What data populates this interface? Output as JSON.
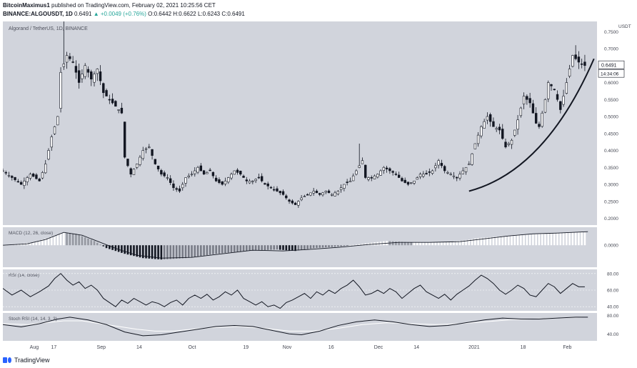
{
  "header": {
    "author": "BitcoinMaximus1",
    "published_text": " published on TradingView.com, February 02, 2021 10:25:56 CET",
    "symbol": "BINANCE:ALGOUSDT, 1D",
    "price": " 0.6491",
    "change": " ▲ +0.0049 (+0.76%)",
    "ohlc": " O:0.6442 H:0.6622 L:0.6243 C:0.6491"
  },
  "footer": {
    "brand": "TradingView"
  },
  "chart_data": {
    "type": "candlestick",
    "title": "Algorand / TetherUS, 1D, BINANCE",
    "currency": "USDT",
    "last_price": "0.6491",
    "countdown": "14:34:06",
    "ylim": [
      0.18,
      0.78
    ],
    "y_ticks": [
      "0.7500",
      "0.7000",
      "0.6500",
      "0.6000",
      "0.5500",
      "0.5000",
      "0.4500",
      "0.4000",
      "0.3500",
      "0.3000",
      "0.2500",
      "0.2000"
    ],
    "x_ticks": [
      {
        "label": "Aug",
        "day": 10
      },
      {
        "label": "17",
        "day": 17
      },
      {
        "label": "Sep",
        "day": 32
      },
      {
        "label": "14",
        "day": 45
      },
      {
        "label": "Oct",
        "day": 62
      },
      {
        "label": "19",
        "day": 80
      },
      {
        "label": "Nov",
        "day": 93
      },
      {
        "label": "16",
        "day": 108
      },
      {
        "label": "Dec",
        "day": 123
      },
      {
        "label": "14",
        "day": 136
      },
      {
        "label": "2021",
        "day": 154
      },
      {
        "label": "18",
        "day": 171
      },
      {
        "label": "Feb",
        "day": 185
      }
    ],
    "x_range": [
      0,
      195
    ],
    "price_path": [
      [
        0,
        0.34
      ],
      [
        3,
        0.32
      ],
      [
        6,
        0.3
      ],
      [
        9,
        0.33
      ],
      [
        12,
        0.31
      ],
      [
        14,
        0.36
      ],
      [
        16,
        0.44
      ],
      [
        18,
        0.5
      ],
      [
        19,
        0.63
      ],
      [
        21,
        0.68
      ],
      [
        23,
        0.66
      ],
      [
        25,
        0.6
      ],
      [
        27,
        0.65
      ],
      [
        29,
        0.61
      ],
      [
        31,
        0.64
      ],
      [
        33,
        0.57
      ],
      [
        35,
        0.55
      ],
      [
        37,
        0.53
      ],
      [
        39,
        0.51
      ],
      [
        40,
        0.38
      ],
      [
        42,
        0.33
      ],
      [
        44,
        0.36
      ],
      [
        46,
        0.4
      ],
      [
        48,
        0.41
      ],
      [
        50,
        0.36
      ],
      [
        52,
        0.33
      ],
      [
        54,
        0.32
      ],
      [
        56,
        0.29
      ],
      [
        58,
        0.28
      ],
      [
        60,
        0.32
      ],
      [
        62,
        0.33
      ],
      [
        64,
        0.35
      ],
      [
        66,
        0.33
      ],
      [
        68,
        0.34
      ],
      [
        70,
        0.31
      ],
      [
        72,
        0.3
      ],
      [
        74,
        0.32
      ],
      [
        76,
        0.34
      ],
      [
        78,
        0.33
      ],
      [
        80,
        0.31
      ],
      [
        82,
        0.31
      ],
      [
        84,
        0.32
      ],
      [
        86,
        0.3
      ],
      [
        88,
        0.29
      ],
      [
        90,
        0.28
      ],
      [
        92,
        0.27
      ],
      [
        94,
        0.25
      ],
      [
        96,
        0.24
      ],
      [
        98,
        0.26
      ],
      [
        100,
        0.27
      ],
      [
        102,
        0.28
      ],
      [
        104,
        0.27
      ],
      [
        106,
        0.28
      ],
      [
        108,
        0.27
      ],
      [
        110,
        0.28
      ],
      [
        112,
        0.3
      ],
      [
        114,
        0.31
      ],
      [
        116,
        0.34
      ],
      [
        118,
        0.37
      ],
      [
        119,
        0.32
      ],
      [
        121,
        0.32
      ],
      [
        123,
        0.33
      ],
      [
        125,
        0.35
      ],
      [
        127,
        0.34
      ],
      [
        129,
        0.33
      ],
      [
        131,
        0.31
      ],
      [
        133,
        0.3
      ],
      [
        135,
        0.31
      ],
      [
        137,
        0.33
      ],
      [
        139,
        0.33
      ],
      [
        141,
        0.34
      ],
      [
        143,
        0.37
      ],
      [
        145,
        0.34
      ],
      [
        147,
        0.33
      ],
      [
        149,
        0.32
      ],
      [
        151,
        0.34
      ],
      [
        153,
        0.36
      ],
      [
        155,
        0.42
      ],
      [
        157,
        0.47
      ],
      [
        159,
        0.5
      ],
      [
        161,
        0.47
      ],
      [
        163,
        0.46
      ],
      [
        165,
        0.41
      ],
      [
        167,
        0.43
      ],
      [
        169,
        0.49
      ],
      [
        171,
        0.56
      ],
      [
        173,
        0.54
      ],
      [
        175,
        0.48
      ],
      [
        176,
        0.47
      ],
      [
        178,
        0.55
      ],
      [
        179,
        0.6
      ],
      [
        181,
        0.58
      ],
      [
        183,
        0.52
      ],
      [
        185,
        0.6
      ],
      [
        187,
        0.68
      ],
      [
        189,
        0.66
      ],
      [
        191,
        0.65
      ]
    ],
    "trendline": {
      "from": [
        153,
        0.28
      ],
      "ctrl": [
        178,
        0.34
      ],
      "to": [
        194,
        0.67
      ]
    },
    "macd": {
      "label": "MACD (12, 26, close)",
      "zero_label": "0.0000",
      "histogram": [
        [
          0,
          0.0
        ],
        [
          10,
          0.2
        ],
        [
          16,
          0.6
        ],
        [
          20,
          0.9
        ],
        [
          24,
          0.8
        ],
        [
          30,
          0.3
        ],
        [
          34,
          -0.2
        ],
        [
          40,
          -0.6
        ],
        [
          46,
          -0.9
        ],
        [
          52,
          -1.0
        ],
        [
          60,
          -0.9
        ],
        [
          70,
          -0.6
        ],
        [
          80,
          -0.4
        ],
        [
          90,
          -0.3
        ],
        [
          96,
          -0.4
        ],
        [
          102,
          -0.2
        ],
        [
          110,
          -0.1
        ],
        [
          118,
          0.1
        ],
        [
          126,
          0.3
        ],
        [
          134,
          0.2
        ],
        [
          142,
          0.2
        ],
        [
          150,
          0.3
        ],
        [
          156,
          0.5
        ],
        [
          162,
          0.6
        ],
        [
          170,
          0.7
        ],
        [
          178,
          0.8
        ],
        [
          186,
          0.9
        ],
        [
          192,
          0.9
        ]
      ],
      "signal": [
        [
          0,
          0.0
        ],
        [
          8,
          0.1
        ],
        [
          14,
          0.4
        ],
        [
          20,
          0.9
        ],
        [
          26,
          0.7
        ],
        [
          32,
          0.2
        ],
        [
          38,
          -0.3
        ],
        [
          44,
          -0.7
        ],
        [
          52,
          -0.9
        ],
        [
          62,
          -0.85
        ],
        [
          72,
          -0.6
        ],
        [
          82,
          -0.35
        ],
        [
          92,
          -0.4
        ],
        [
          100,
          -0.3
        ],
        [
          110,
          -0.15
        ],
        [
          120,
          0.05
        ],
        [
          130,
          0.2
        ],
        [
          140,
          0.2
        ],
        [
          150,
          0.25
        ],
        [
          158,
          0.45
        ],
        [
          166,
          0.65
        ],
        [
          174,
          0.8
        ],
        [
          182,
          0.85
        ],
        [
          192,
          0.95
        ]
      ]
    },
    "rsi": {
      "label": "RSI (14, close)",
      "levels": [
        "80.00",
        "60.00",
        "40.00"
      ],
      "ylim": [
        35,
        85
      ],
      "values": [
        [
          0,
          62
        ],
        [
          3,
          54
        ],
        [
          6,
          60
        ],
        [
          9,
          52
        ],
        [
          12,
          58
        ],
        [
          15,
          65
        ],
        [
          17,
          74
        ],
        [
          19,
          80
        ],
        [
          21,
          72
        ],
        [
          23,
          66
        ],
        [
          25,
          70
        ],
        [
          27,
          62
        ],
        [
          29,
          66
        ],
        [
          31,
          60
        ],
        [
          33,
          50
        ],
        [
          35,
          45
        ],
        [
          37,
          40
        ],
        [
          39,
          48
        ],
        [
          41,
          44
        ],
        [
          43,
          50
        ],
        [
          45,
          46
        ],
        [
          47,
          42
        ],
        [
          49,
          46
        ],
        [
          51,
          44
        ],
        [
          53,
          40
        ],
        [
          55,
          45
        ],
        [
          57,
          48
        ],
        [
          59,
          42
        ],
        [
          61,
          50
        ],
        [
          63,
          54
        ],
        [
          65,
          50
        ],
        [
          67,
          55
        ],
        [
          69,
          48
        ],
        [
          71,
          52
        ],
        [
          73,
          58
        ],
        [
          75,
          54
        ],
        [
          77,
          60
        ],
        [
          79,
          50
        ],
        [
          81,
          46
        ],
        [
          83,
          42
        ],
        [
          85,
          46
        ],
        [
          87,
          40
        ],
        [
          89,
          42
        ],
        [
          91,
          38
        ],
        [
          93,
          45
        ],
        [
          95,
          48
        ],
        [
          97,
          52
        ],
        [
          99,
          56
        ],
        [
          101,
          50
        ],
        [
          103,
          58
        ],
        [
          105,
          54
        ],
        [
          107,
          60
        ],
        [
          109,
          56
        ],
        [
          111,
          62
        ],
        [
          113,
          66
        ],
        [
          115,
          72
        ],
        [
          117,
          64
        ],
        [
          119,
          54
        ],
        [
          121,
          56
        ],
        [
          123,
          60
        ],
        [
          125,
          56
        ],
        [
          127,
          62
        ],
        [
          129,
          58
        ],
        [
          131,
          50
        ],
        [
          133,
          56
        ],
        [
          135,
          62
        ],
        [
          137,
          66
        ],
        [
          139,
          58
        ],
        [
          141,
          54
        ],
        [
          143,
          50
        ],
        [
          145,
          55
        ],
        [
          147,
          48
        ],
        [
          149,
          55
        ],
        [
          151,
          60
        ],
        [
          153,
          65
        ],
        [
          155,
          72
        ],
        [
          157,
          78
        ],
        [
          159,
          74
        ],
        [
          161,
          68
        ],
        [
          163,
          60
        ],
        [
          165,
          55
        ],
        [
          167,
          60
        ],
        [
          169,
          66
        ],
        [
          171,
          62
        ],
        [
          173,
          54
        ],
        [
          175,
          52
        ],
        [
          177,
          60
        ],
        [
          179,
          68
        ],
        [
          181,
          64
        ],
        [
          183,
          56
        ],
        [
          185,
          62
        ],
        [
          187,
          68
        ],
        [
          189,
          64
        ],
        [
          191,
          64
        ]
      ]
    },
    "stoch": {
      "label": "Stoch RSI (14, 14, 3, 3)",
      "levels": [
        "80.00",
        "40.00"
      ],
      "ylim": [
        25,
        85
      ],
      "k": [
        [
          0,
          60
        ],
        [
          6,
          55
        ],
        [
          12,
          62
        ],
        [
          18,
          72
        ],
        [
          22,
          76
        ],
        [
          28,
          70
        ],
        [
          34,
          60
        ],
        [
          40,
          44
        ],
        [
          46,
          36
        ],
        [
          52,
          38
        ],
        [
          58,
          44
        ],
        [
          64,
          50
        ],
        [
          70,
          56
        ],
        [
          76,
          58
        ],
        [
          82,
          56
        ],
        [
          88,
          48
        ],
        [
          94,
          40
        ],
        [
          98,
          38
        ],
        [
          104,
          46
        ],
        [
          110,
          58
        ],
        [
          116,
          66
        ],
        [
          122,
          70
        ],
        [
          128,
          66
        ],
        [
          134,
          60
        ],
        [
          140,
          56
        ],
        [
          146,
          58
        ],
        [
          152,
          64
        ],
        [
          158,
          70
        ],
        [
          164,
          74
        ],
        [
          170,
          72
        ],
        [
          176,
          72
        ],
        [
          182,
          74
        ],
        [
          188,
          76
        ],
        [
          192,
          76
        ]
      ],
      "d": [
        [
          0,
          62
        ],
        [
          8,
          60
        ],
        [
          14,
          64
        ],
        [
          20,
          68
        ],
        [
          26,
          68
        ],
        [
          32,
          62
        ],
        [
          38,
          56
        ],
        [
          44,
          50
        ],
        [
          50,
          46
        ],
        [
          56,
          46
        ],
        [
          62,
          50
        ],
        [
          70,
          54
        ],
        [
          78,
          56
        ],
        [
          86,
          52
        ],
        [
          94,
          46
        ],
        [
          102,
          46
        ],
        [
          110,
          52
        ],
        [
          118,
          60
        ],
        [
          126,
          64
        ],
        [
          134,
          62
        ],
        [
          142,
          60
        ],
        [
          150,
          62
        ],
        [
          158,
          66
        ],
        [
          166,
          70
        ],
        [
          174,
          72
        ],
        [
          182,
          74
        ],
        [
          190,
          76
        ]
      ]
    }
  }
}
